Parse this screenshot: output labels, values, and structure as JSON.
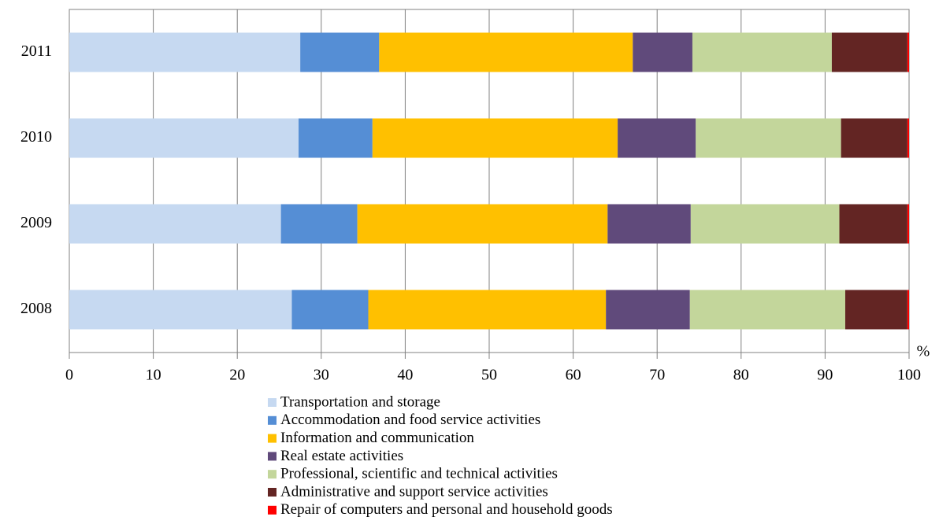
{
  "chart_data": {
    "type": "stacked-barh",
    "categories": [
      "2011",
      "2010",
      "2009",
      "2008"
    ],
    "series": [
      {
        "name": "Transportation and storage",
        "color": "#c6d9f1",
        "values": [
          27.5,
          27.3,
          25.2,
          26.5
        ]
      },
      {
        "name": "Accommodation and food service activities",
        "color": "#558ed5",
        "values": [
          9.4,
          8.8,
          9.1,
          9.1
        ]
      },
      {
        "name": "Information and communication",
        "color": "#ffc000",
        "values": [
          30.2,
          29.2,
          29.8,
          28.3
        ]
      },
      {
        "name": "Real estate activities",
        "color": "#604a7b",
        "values": [
          7.1,
          9.3,
          9.9,
          10.0
        ]
      },
      {
        "name": "Professional, scientific and technical activities",
        "color": "#c3d69b",
        "values": [
          16.6,
          17.3,
          17.7,
          18.5
        ]
      },
      {
        "name": "Administrative and support service activities",
        "color": "#632523",
        "values": [
          9.0,
          7.9,
          8.1,
          7.4
        ]
      },
      {
        "name": "Repair of computers and personal and household goods",
        "color": "#ff0000",
        "values": [
          0.2,
          0.2,
          0.2,
          0.2
        ]
      }
    ],
    "x_label": "%",
    "xlim": [
      0,
      100
    ],
    "xticks": [
      0,
      10,
      20,
      30,
      40,
      50,
      60,
      70,
      80,
      90,
      100
    ],
    "grid": true,
    "legend": "bottom"
  }
}
